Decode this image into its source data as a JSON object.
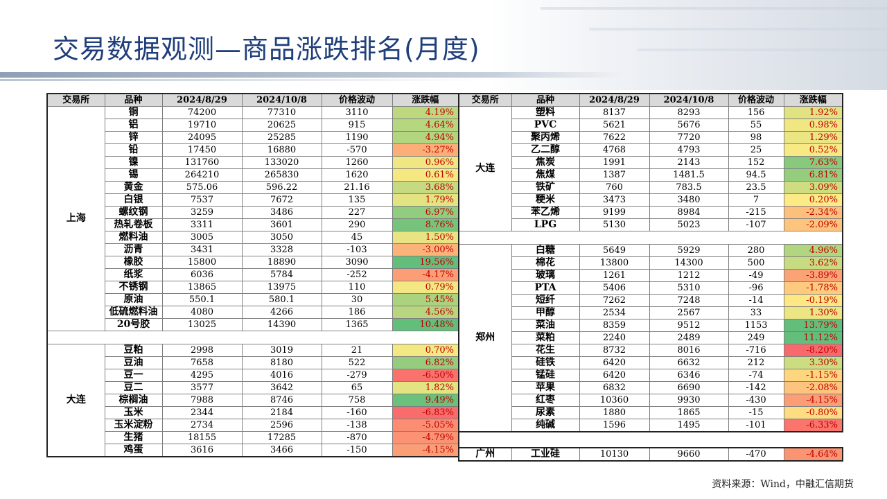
{
  "title": "交易数据观测—商品涨跌排名(月度)",
  "headers": [
    "交易所",
    "品种",
    "2024/8/29",
    "2024/10/8",
    "价格波动",
    "涨跌幅"
  ],
  "left_groups": [
    {
      "exchange": "上海",
      "rows": [
        {
          "name": "铜",
          "d1": "74200",
          "d2": "77310",
          "chg": "3110",
          "pct": "4.19%",
          "pct_value": 4.19
        },
        {
          "name": "铝",
          "d1": "19710",
          "d2": "20625",
          "chg": "915",
          "pct": "4.64%",
          "pct_value": 4.64
        },
        {
          "name": "锌",
          "d1": "24095",
          "d2": "25285",
          "chg": "1190",
          "pct": "4.94%",
          "pct_value": 4.94
        },
        {
          "name": "铅",
          "d1": "17450",
          "d2": "16880",
          "chg": "-570",
          "pct": "-3.27%",
          "pct_value": -3.27
        },
        {
          "name": "镍",
          "d1": "131760",
          "d2": "133020",
          "chg": "1260",
          "pct": "0.96%",
          "pct_value": 0.96
        },
        {
          "name": "锡",
          "d1": "264210",
          "d2": "265830",
          "chg": "1620",
          "pct": "0.61%",
          "pct_value": 0.61
        },
        {
          "name": "黄金",
          "d1": "575.06",
          "d2": "596.22",
          "chg": "21.16",
          "pct": "3.68%",
          "pct_value": 3.68
        },
        {
          "name": "白银",
          "d1": "7537",
          "d2": "7672",
          "chg": "135",
          "pct": "1.79%",
          "pct_value": 1.79
        },
        {
          "name": "螺纹钢",
          "d1": "3259",
          "d2": "3486",
          "chg": "227",
          "pct": "6.97%",
          "pct_value": 6.97
        },
        {
          "name": "热轧卷板",
          "d1": "3311",
          "d2": "3601",
          "chg": "290",
          "pct": "8.76%",
          "pct_value": 8.76
        },
        {
          "name": "燃料油",
          "d1": "3005",
          "d2": "3050",
          "chg": "45",
          "pct": "1.50%",
          "pct_value": 1.5
        },
        {
          "name": "沥青",
          "d1": "3431",
          "d2": "3328",
          "chg": "-103",
          "pct": "-3.00%",
          "pct_value": -3.0
        },
        {
          "name": "橡胶",
          "d1": "15800",
          "d2": "18890",
          "chg": "3090",
          "pct": "19.56%",
          "pct_value": 19.56
        },
        {
          "name": "纸浆",
          "d1": "6036",
          "d2": "5784",
          "chg": "-252",
          "pct": "-4.17%",
          "pct_value": -4.17
        },
        {
          "name": "不锈钢",
          "d1": "13865",
          "d2": "13975",
          "chg": "110",
          "pct": "0.79%",
          "pct_value": 0.79
        },
        {
          "name": "原油",
          "d1": "550.1",
          "d2": "580.1",
          "chg": "30",
          "pct": "5.45%",
          "pct_value": 5.45
        },
        {
          "name": "低硫燃料油",
          "d1": "4080",
          "d2": "4266",
          "chg": "186",
          "pct": "4.56%",
          "pct_value": 4.56
        },
        {
          "name": "20号胶",
          "d1": "13025",
          "d2": "14390",
          "chg": "1365",
          "pct": "10.48%",
          "pct_value": 10.48
        }
      ]
    },
    {
      "exchange": "大连",
      "rows": [
        {
          "name": "豆粕",
          "d1": "2998",
          "d2": "3019",
          "chg": "21",
          "pct": "0.70%",
          "pct_value": 0.7
        },
        {
          "name": "豆油",
          "d1": "7658",
          "d2": "8180",
          "chg": "522",
          "pct": "6.82%",
          "pct_value": 6.82
        },
        {
          "name": "豆一",
          "d1": "4295",
          "d2": "4016",
          "chg": "-279",
          "pct": "-6.50%",
          "pct_value": -6.5
        },
        {
          "name": "豆二",
          "d1": "3577",
          "d2": "3642",
          "chg": "65",
          "pct": "1.82%",
          "pct_value": 1.82
        },
        {
          "name": "棕榈油",
          "d1": "7988",
          "d2": "8746",
          "chg": "758",
          "pct": "9.49%",
          "pct_value": 9.49
        },
        {
          "name": "玉米",
          "d1": "2344",
          "d2": "2184",
          "chg": "-160",
          "pct": "-6.83%",
          "pct_value": -6.83
        },
        {
          "name": "玉米淀粉",
          "d1": "2734",
          "d2": "2596",
          "chg": "-138",
          "pct": "-5.05%",
          "pct_value": -5.05
        },
        {
          "name": "生猪",
          "d1": "18155",
          "d2": "17285",
          "chg": "-870",
          "pct": "-4.79%",
          "pct_value": -4.79
        },
        {
          "name": "鸡蛋",
          "d1": "3616",
          "d2": "3466",
          "chg": "-150",
          "pct": "-4.15%",
          "pct_value": -4.15
        }
      ]
    }
  ],
  "right_groups": [
    {
      "exchange": "大连",
      "rows": [
        {
          "name": "塑料",
          "d1": "8137",
          "d2": "8293",
          "chg": "156",
          "pct": "1.92%",
          "pct_value": 1.92
        },
        {
          "name": "PVC",
          "d1": "5621",
          "d2": "5676",
          "chg": "55",
          "pct": "0.98%",
          "pct_value": 0.98
        },
        {
          "name": "聚丙烯",
          "d1": "7622",
          "d2": "7720",
          "chg": "98",
          "pct": "1.29%",
          "pct_value": 1.29
        },
        {
          "name": "乙二醇",
          "d1": "4768",
          "d2": "4793",
          "chg": "25",
          "pct": "0.52%",
          "pct_value": 0.52
        },
        {
          "name": "焦炭",
          "d1": "1991",
          "d2": "2143",
          "chg": "152",
          "pct": "7.63%",
          "pct_value": 7.63
        },
        {
          "name": "焦煤",
          "d1": "1387",
          "d2": "1481.5",
          "chg": "94.5",
          "pct": "6.81%",
          "pct_value": 6.81
        },
        {
          "name": "铁矿",
          "d1": "760",
          "d2": "783.5",
          "chg": "23.5",
          "pct": "3.09%",
          "pct_value": 3.09
        },
        {
          "name": "粳米",
          "d1": "3473",
          "d2": "3480",
          "chg": "7",
          "pct": "0.20%",
          "pct_value": 0.2
        },
        {
          "name": "苯乙烯",
          "d1": "9199",
          "d2": "8984",
          "chg": "-215",
          "pct": "-2.34%",
          "pct_value": -2.34
        },
        {
          "name": "LPG",
          "d1": "5130",
          "d2": "5023",
          "chg": "-107",
          "pct": "-2.09%",
          "pct_value": -2.09
        }
      ]
    },
    {
      "exchange": "郑州",
      "rows": [
        {
          "name": "白糖",
          "d1": "5649",
          "d2": "5929",
          "chg": "280",
          "pct": "4.96%",
          "pct_value": 4.96
        },
        {
          "name": "棉花",
          "d1": "13800",
          "d2": "14300",
          "chg": "500",
          "pct": "3.62%",
          "pct_value": 3.62
        },
        {
          "name": "玻璃",
          "d1": "1261",
          "d2": "1212",
          "chg": "-49",
          "pct": "-3.89%",
          "pct_value": -3.89
        },
        {
          "name": "PTA",
          "d1": "5406",
          "d2": "5310",
          "chg": "-96",
          "pct": "-1.78%",
          "pct_value": -1.78
        },
        {
          "name": "短纤",
          "d1": "7262",
          "d2": "7248",
          "chg": "-14",
          "pct": "-0.19%",
          "pct_value": -0.19
        },
        {
          "name": "甲醇",
          "d1": "2534",
          "d2": "2567",
          "chg": "33",
          "pct": "1.30%",
          "pct_value": 1.3
        },
        {
          "name": "菜油",
          "d1": "8359",
          "d2": "9512",
          "chg": "1153",
          "pct": "13.79%",
          "pct_value": 13.79
        },
        {
          "name": "菜粕",
          "d1": "2240",
          "d2": "2489",
          "chg": "249",
          "pct": "11.12%",
          "pct_value": 11.12
        },
        {
          "name": "花生",
          "d1": "8732",
          "d2": "8016",
          "chg": "-716",
          "pct": "-8.20%",
          "pct_value": -8.2
        },
        {
          "name": "硅铁",
          "d1": "6420",
          "d2": "6632",
          "chg": "212",
          "pct": "3.30%",
          "pct_value": 3.3
        },
        {
          "name": "锰硅",
          "d1": "6420",
          "d2": "6346",
          "chg": "-74",
          "pct": "-1.15%",
          "pct_value": -1.15
        },
        {
          "name": "苹果",
          "d1": "6832",
          "d2": "6690",
          "chg": "-142",
          "pct": "-2.08%",
          "pct_value": -2.08
        },
        {
          "name": "红枣",
          "d1": "10360",
          "d2": "9930",
          "chg": "-430",
          "pct": "-4.15%",
          "pct_value": -4.15
        },
        {
          "name": "尿素",
          "d1": "1880",
          "d2": "1865",
          "chg": "-15",
          "pct": "-0.80%",
          "pct_value": -0.8
        },
        {
          "name": "纯碱",
          "d1": "1596",
          "d2": "1495",
          "chg": "-101",
          "pct": "-6.33%",
          "pct_value": -6.33
        }
      ]
    }
  ],
  "guangzhou": {
    "exchange": "广州",
    "rows": [
      {
        "name": "工业硅",
        "d1": "10130",
        "d2": "9660",
        "chg": "-470",
        "pct": "-4.64%",
        "pct_value": -4.64
      }
    ]
  },
  "source": "资料来源：Wind，中融汇信期货",
  "colors": {
    "pos_max": "#63be7b",
    "mid": "#ffeb84",
    "neg_max": "#f8696b",
    "title": "#1f3e7a",
    "pct_text_neg": "#c00000",
    "pct_text_pos": "#c00000"
  }
}
